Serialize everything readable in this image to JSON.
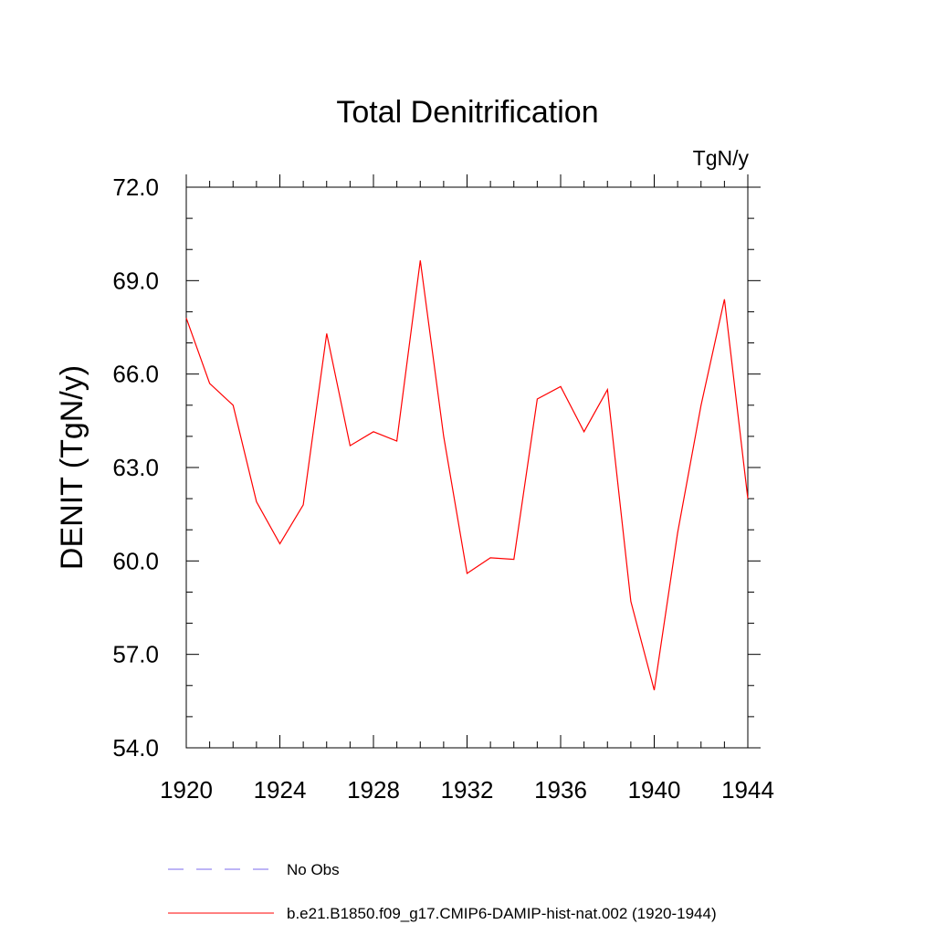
{
  "chart_data": {
    "type": "line",
    "title": "Total Denitrification",
    "units": "TgN/y",
    "ylabel": "DENIT  (TgN/y)",
    "xlabel": "",
    "xlim": [
      1920,
      1944
    ],
    "ylim": [
      54.0,
      72.0
    ],
    "x_ticks": [
      "1920",
      "1924",
      "1928",
      "1932",
      "1936",
      "1940",
      "1944"
    ],
    "y_ticks": [
      "54.0",
      "57.0",
      "60.0",
      "63.0",
      "66.0",
      "69.0",
      "72.0"
    ],
    "grid": false,
    "legend_position": "bottom",
    "legend": [
      {
        "label": "No Obs",
        "color": "#7b68ee",
        "style": "dashed"
      },
      {
        "label": "b.e21.B1850.f09_g17.CMIP6-DAMIP-hist-nat.002 (1920-1944)",
        "color": "#ff0000",
        "style": "solid"
      }
    ],
    "series": [
      {
        "name": "b.e21.B1850.f09_g17.CMIP6-DAMIP-hist-nat.002 (1920-1944)",
        "color": "#ff0000",
        "x": [
          1920,
          1921,
          1922,
          1923,
          1924,
          1925,
          1926,
          1927,
          1928,
          1929,
          1930,
          1931,
          1932,
          1933,
          1934,
          1935,
          1936,
          1937,
          1938,
          1939,
          1940,
          1941,
          1942,
          1943,
          1944
        ],
        "y": [
          67.8,
          65.7,
          65.0,
          61.9,
          60.55,
          61.8,
          67.3,
          63.7,
          64.15,
          63.85,
          69.65,
          64.0,
          59.6,
          60.1,
          60.05,
          65.2,
          65.6,
          64.15,
          65.5,
          58.7,
          55.85,
          60.9,
          65.0,
          68.4,
          62.0
        ]
      }
    ]
  }
}
